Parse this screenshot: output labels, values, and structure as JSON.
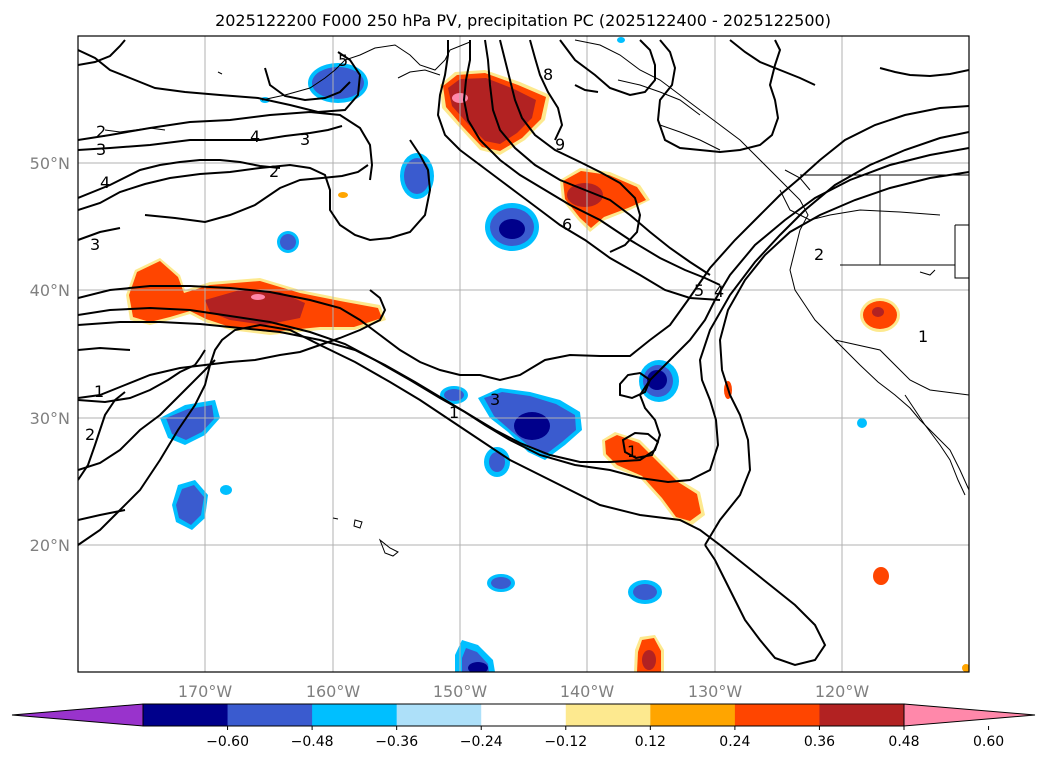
{
  "title": "2025122200 F000 250 hPa PV, precipitation PC (2025122400 - 2025122500)",
  "lat_labels": [
    "50°N",
    "40°N",
    "30°N",
    "20°N"
  ],
  "lon_labels": [
    "170°W",
    "160°W",
    "150°W",
    "140°W",
    "130°W",
    "120°W"
  ],
  "colorbar": {
    "tick_labels": [
      "−0.60",
      "−0.48",
      "−0.36",
      "−0.24",
      "−0.12",
      "0.12",
      "0.24",
      "0.36",
      "0.48",
      "0.60"
    ],
    "colors": [
      "#9933cc",
      "#00008b",
      "#3a5bcf",
      "#00bfff",
      "#ade0f9",
      "#ffffff",
      "#fde98f",
      "#ffa500",
      "#ff4500",
      "#b22222",
      "#ff88aa"
    ]
  },
  "contour_labels": [
    "2",
    "3",
    "4",
    "3",
    "2",
    "4",
    "3",
    "1",
    "2",
    "8",
    "9",
    "6",
    "5",
    "4",
    "2",
    "1",
    "3",
    "1",
    "1",
    "5"
  ]
}
